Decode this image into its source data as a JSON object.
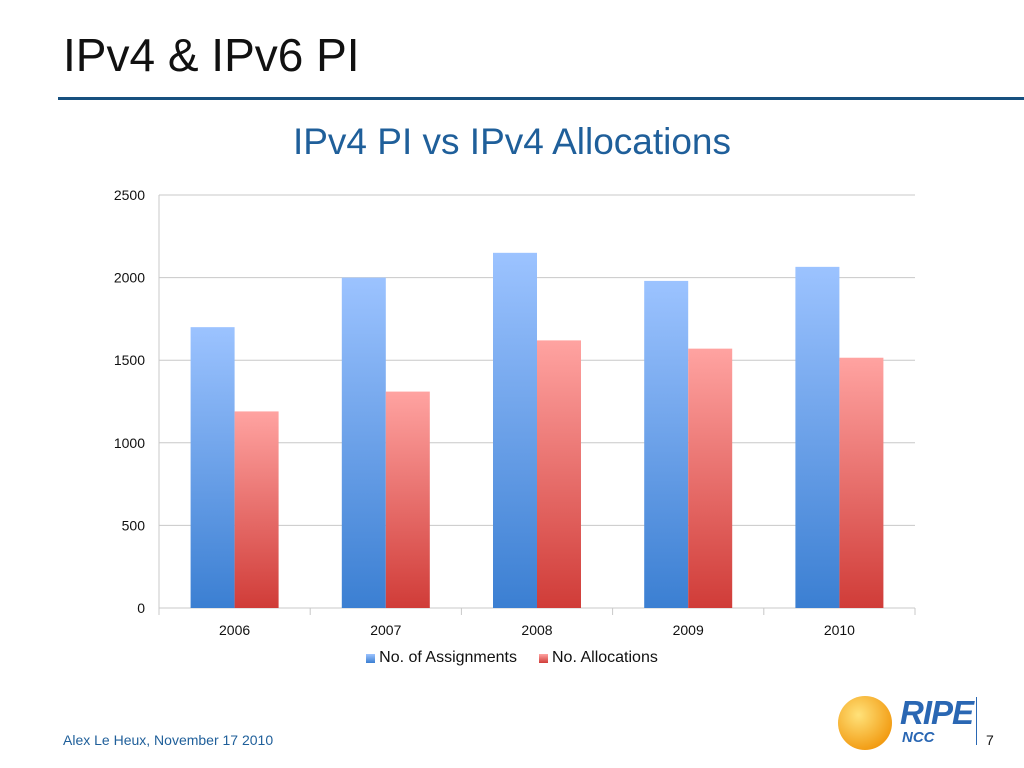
{
  "slide": {
    "title": "IPv4 & IPv6 PI",
    "footer": "Alex Le Heux, November 17 2010",
    "page_number": "7",
    "logo": {
      "brand": "RIPE",
      "sub": "NCC"
    }
  },
  "colors": {
    "title_rule": "#17507f",
    "chart_title": "#1f5f9a",
    "footer_text": "#1f5f9a",
    "series_blue_top": "#9cc3ff",
    "series_blue_bottom": "#3b7fd2",
    "series_red_top": "#ffa3a1",
    "series_red_bottom": "#d03c38",
    "grid": "#c8c8c8",
    "logo_blue": "#2a67b3",
    "logo_sun_light": "#ffe27a",
    "logo_sun_dark": "#f29b12"
  },
  "chart_data": {
    "type": "bar",
    "title": "IPv4 PI vs IPv4 Allocations",
    "categories": [
      "2006",
      "2007",
      "2008",
      "2009",
      "2010"
    ],
    "series": [
      {
        "name": "No. of Assignments",
        "values": [
          1700,
          2000,
          2150,
          1980,
          2065
        ]
      },
      {
        "name": "No. Allocations",
        "values": [
          1190,
          1310,
          1620,
          1570,
          1515
        ]
      }
    ],
    "ylim": [
      0,
      2500
    ],
    "yticks": [
      "0",
      "500",
      "1000",
      "1500",
      "2000",
      "2500"
    ],
    "grid": true,
    "legend_position": "bottom"
  }
}
